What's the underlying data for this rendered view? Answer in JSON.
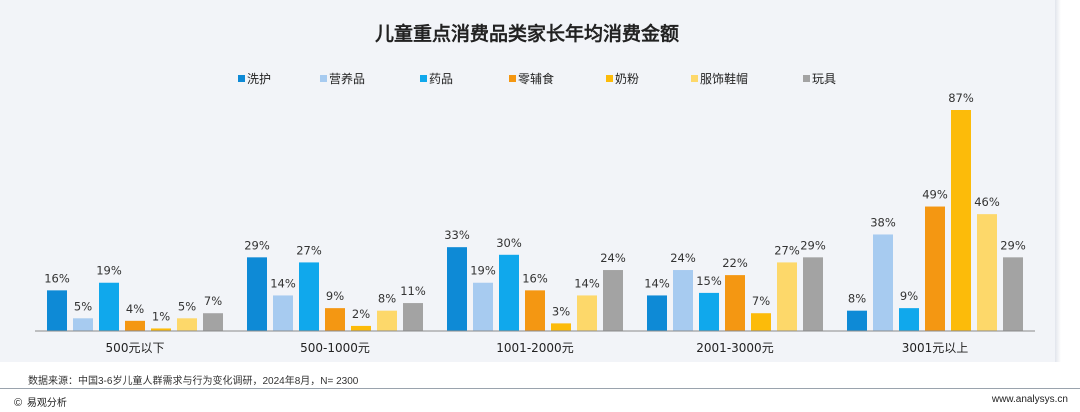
{
  "chart_data": {
    "type": "bar",
    "title": "儿童重点消费品类家长年均消费金额",
    "categories": [
      "500元以下",
      "500-1000元",
      "1001-2000元",
      "2001-3000元",
      "3001元以上"
    ],
    "series": [
      {
        "name": "洗护",
        "color": "#0e8ad6",
        "values": [
          16,
          29,
          33,
          14,
          8
        ]
      },
      {
        "name": "营养品",
        "color": "#a7cbf0",
        "values": [
          5,
          14,
          19,
          24,
          38
        ]
      },
      {
        "name": "药品",
        "color": "#10a8ec",
        "values": [
          19,
          27,
          30,
          15,
          9
        ]
      },
      {
        "name": "零辅食",
        "color": "#f49712",
        "values": [
          4,
          9,
          16,
          22,
          49
        ]
      },
      {
        "name": "奶粉",
        "color": "#fcbb0a",
        "values": [
          1,
          2,
          3,
          7,
          87
        ]
      },
      {
        "name": "服饰鞋帽",
        "color": "#fdd86a",
        "values": [
          5,
          8,
          14,
          27,
          46
        ]
      },
      {
        "name": "玩具",
        "color": "#a3a3a3",
        "values": [
          7,
          11,
          24,
          29,
          29
        ]
      }
    ],
    "ylim": [
      0,
      87
    ],
    "unit": "%",
    "grid": false,
    "legend": "top-center"
  },
  "footer": {
    "source": "数据来源：中国3-6岁儿童人群需求与行为变化调研，2024年8月，N= 2300",
    "brand_mark": "©",
    "brand": "易观分析",
    "url": "www.analysys.cn"
  }
}
